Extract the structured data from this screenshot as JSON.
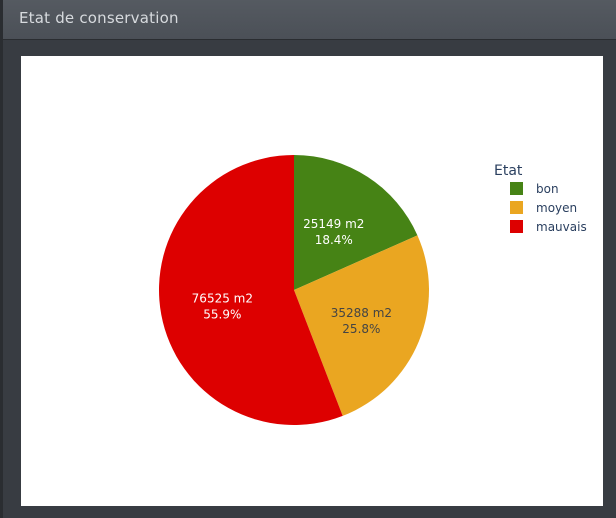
{
  "window": {
    "title": "Etat de conservation"
  },
  "chart_data": {
    "type": "pie",
    "unit": "m2",
    "legend": {
      "title": "Etat",
      "placement": "right"
    },
    "slices": [
      {
        "label": "bon",
        "value": 25149,
        "percent": "18.4%",
        "color": "#468315",
        "text_color": "#ffffff",
        "value_text": "25149 m2"
      },
      {
        "label": "moyen",
        "value": 35288,
        "percent": "25.8%",
        "color": "#eaa621",
        "text_color": "#444444",
        "value_text": "35288 m2"
      },
      {
        "label": "mauvais",
        "value": 76525,
        "percent": "55.9%",
        "color": "#dd0000",
        "text_color": "#ffffff",
        "value_text": "76525 m2"
      }
    ]
  }
}
